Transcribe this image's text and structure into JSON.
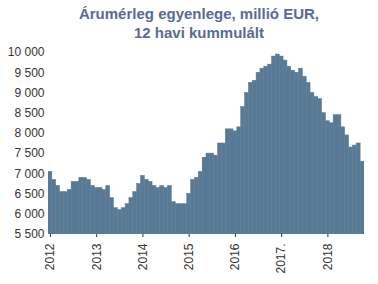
{
  "chart_data": {
    "type": "bar",
    "title": "Árumérleg egyenlege,  millió EUR,\n12 havi kummulált",
    "color": "#587a96",
    "categories": [
      "2012",
      null,
      null,
      null,
      null,
      null,
      null,
      null,
      null,
      null,
      null,
      null,
      "2013",
      null,
      null,
      null,
      null,
      null,
      null,
      null,
      null,
      null,
      null,
      null,
      "2014",
      null,
      null,
      null,
      null,
      null,
      null,
      null,
      null,
      null,
      null,
      null,
      "2015",
      null,
      null,
      null,
      null,
      null,
      null,
      null,
      null,
      null,
      null,
      null,
      "2016",
      null,
      null,
      null,
      null,
      null,
      null,
      null,
      null,
      null,
      null,
      null,
      "2017.",
      null,
      null,
      null,
      null,
      null,
      null,
      null,
      null,
      null,
      null,
      null,
      "2018",
      null,
      null,
      null,
      null,
      null,
      null,
      null,
      null,
      null
    ],
    "values": [
      7050,
      6850,
      6700,
      6550,
      6550,
      6600,
      6800,
      6800,
      6900,
      6900,
      6850,
      6700,
      6650,
      6650,
      6600,
      6700,
      6400,
      6150,
      6100,
      6150,
      6250,
      6400,
      6550,
      6750,
      6950,
      6850,
      6800,
      6700,
      6650,
      6700,
      6650,
      6700,
      6300,
      6250,
      6250,
      6250,
      6500,
      6850,
      6900,
      7050,
      7400,
      7500,
      7500,
      7450,
      7750,
      7750,
      8100,
      8100,
      8050,
      8150,
      8650,
      9000,
      9250,
      9300,
      9500,
      9600,
      9650,
      9700,
      9900,
      9950,
      9900,
      9800,
      9650,
      9550,
      9500,
      9600,
      9400,
      9250,
      9000,
      8900,
      8850,
      8500,
      8300,
      8250,
      8450,
      8450,
      8150,
      7950,
      7650,
      7700,
      7750,
      7300
    ],
    "ylim": [
      5500,
      10000
    ],
    "yticks": [
      {
        "value": 5500,
        "label": "5 500"
      },
      {
        "value": 6000,
        "label": "6 000"
      },
      {
        "value": 6500,
        "label": "6 500"
      },
      {
        "value": 7000,
        "label": "7 000"
      },
      {
        "value": 7500,
        "label": "7 500"
      },
      {
        "value": 8000,
        "label": "8 000"
      },
      {
        "value": 8500,
        "label": "8 500"
      },
      {
        "value": 9000,
        "label": "9 000"
      },
      {
        "value": 9500,
        "label": "9 500"
      },
      {
        "value": 10000,
        "label": "10 000"
      }
    ],
    "grid": false
  }
}
